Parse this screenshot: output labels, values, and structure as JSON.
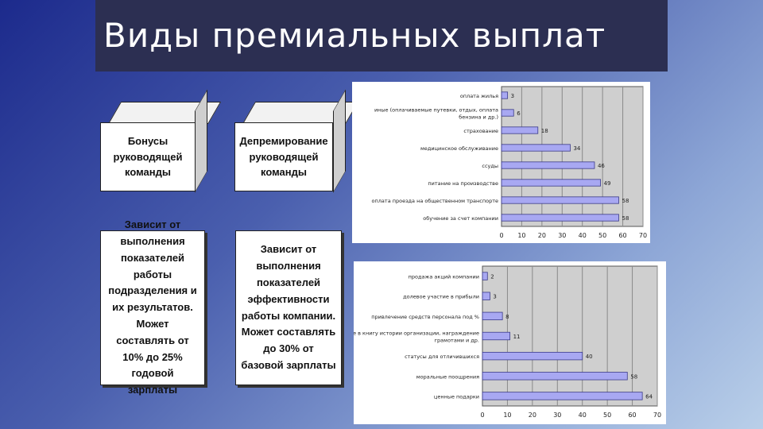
{
  "slide": {
    "title": "Виды премиальных выплат"
  },
  "boxes": {
    "box1": "Бонусы руководящей команды",
    "box2": "Депремирование руководящей команды",
    "box3": "Зависит от выполнения показателей работы подразделения и их результатов. Может составлять от 10% до 25% годовой зарплаты",
    "box4": "Зависит от выполнения показателей эффективности работы компании. Может составлять до 30% от базовой зарплаты"
  },
  "colors": {
    "bar_fill": "#a8a8f2",
    "bar_stroke": "#3a3a8a",
    "plot_bg": "#cfcfcf"
  },
  "chart_data": [
    {
      "type": "bar",
      "orientation": "horizontal",
      "categories": [
        "оплата жилья",
        "иные (оплачиваемые путевки, отдых, оплата бензина и др.)",
        "страхование",
        "медицинское обслуживание",
        "ссуды",
        "питание на производстве",
        "оплата проезда на общественном транспорте",
        "обучение за счет компании"
      ],
      "values": [
        3,
        6,
        18,
        34,
        46,
        49,
        58,
        58
      ],
      "xlim": [
        0,
        70
      ],
      "ticks": [
        0,
        10,
        20,
        30,
        40,
        50,
        60,
        70
      ],
      "grid": true
    },
    {
      "type": "bar",
      "orientation": "horizontal",
      "categories": [
        "продажа акций компании",
        "долевое участие в прибыли",
        "привлечение средств персонала под %",
        "занесение в книгу истории организации, награждение грамотами и др.",
        "статусы для отличившихся",
        "моральные поощрения",
        "ценные подарки"
      ],
      "values": [
        2,
        3,
        8,
        11,
        40,
        58,
        64
      ],
      "xlim": [
        0,
        70
      ],
      "ticks": [
        0,
        10,
        20,
        30,
        40,
        50,
        60,
        70
      ],
      "grid": true
    }
  ]
}
